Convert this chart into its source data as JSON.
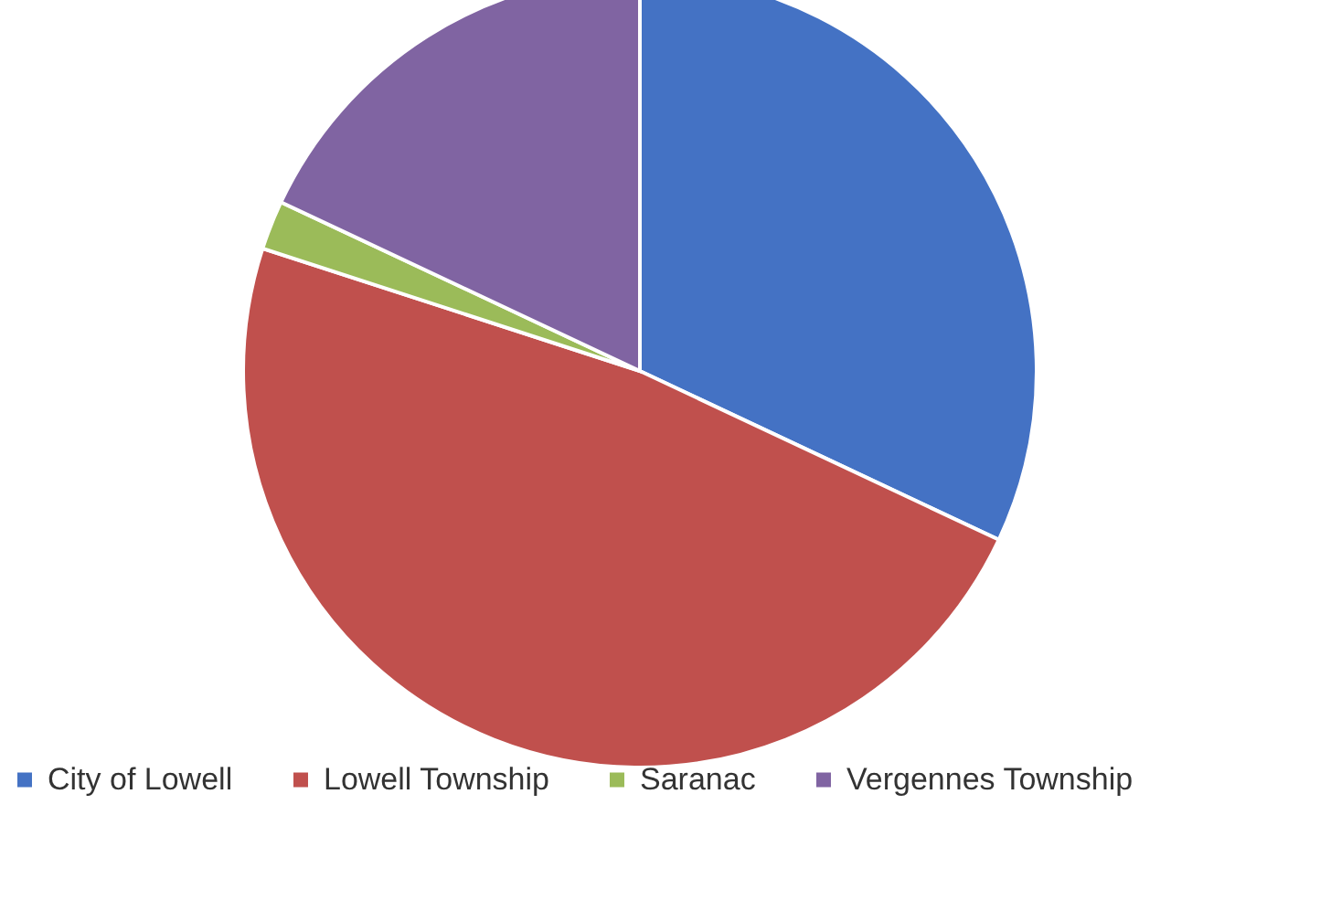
{
  "chart_data": {
    "type": "pie",
    "categories": [
      "City of Lowell",
      "Lowell Township",
      "Saranac",
      "Vergennes Township"
    ],
    "values": [
      32,
      48,
      2,
      18
    ],
    "colors": [
      "#4472c4",
      "#c0504d",
      "#9bbb59",
      "#8064a2"
    ],
    "legend": "bottom"
  }
}
